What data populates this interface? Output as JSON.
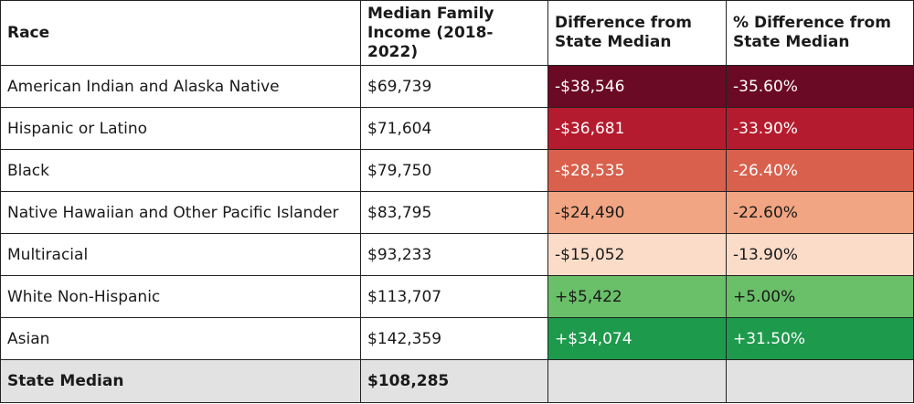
{
  "chart_data": {
    "type": "table",
    "columns": [
      "Race",
      "Median Family Income (2018-2022)",
      "Difference from State Median",
      "% Difference from State Median"
    ],
    "rows": [
      {
        "race": "American Indian and Alaska Native",
        "income": "$69,739",
        "difference": "-$38,546",
        "pct_difference": "-35.60%",
        "fill": "#6a0a25",
        "text_color": "#ffffff"
      },
      {
        "race": "Hispanic or Latino",
        "income": "$71,604",
        "difference": "-$36,681",
        "pct_difference": "-33.90%",
        "fill": "#b51b2e",
        "text_color": "#ffffff"
      },
      {
        "race": "Black",
        "income": "$79,750",
        "difference": "-$28,535",
        "pct_difference": "-26.40%",
        "fill": "#d8604c",
        "text_color": "#ffffff"
      },
      {
        "race": "Native Hawaiian and Other Pacific Islander",
        "income": "$83,795",
        "difference": "-$24,490",
        "pct_difference": "-22.60%",
        "fill": "#f2a583",
        "text_color": "#1a1a1a"
      },
      {
        "race": "Multiracial",
        "income": "$93,233",
        "difference": "-$15,052",
        "pct_difference": "-13.90%",
        "fill": "#fbdcc9",
        "text_color": "#1a1a1a"
      },
      {
        "race": "White Non-Hispanic",
        "income": "$113,707",
        "difference": "+$5,422",
        "pct_difference": "+5.00%",
        "fill": "#6abf69",
        "text_color": "#1a1a1a"
      },
      {
        "race": "Asian",
        "income": "$142,359",
        "difference": "+$34,074",
        "pct_difference": "+31.50%",
        "fill": "#1e9a4c",
        "text_color": "#ffffff"
      }
    ],
    "footer": {
      "race": "State Median",
      "income": "$108,285",
      "difference": "",
      "pct_difference": "",
      "fill": "#e2e2e2"
    }
  }
}
